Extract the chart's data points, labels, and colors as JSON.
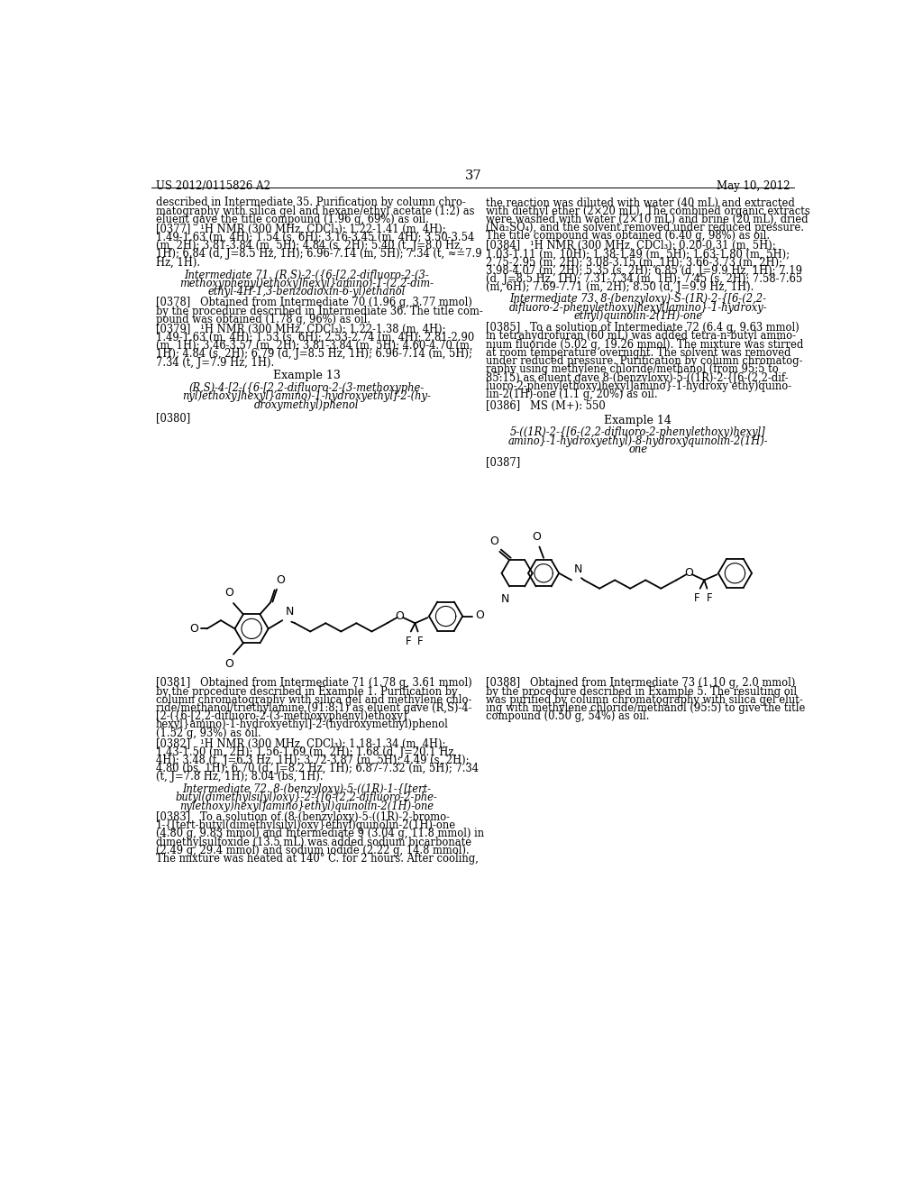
{
  "bg_color": "#ffffff",
  "header_left": "US 2012/0115826 A2",
  "header_right": "May 10, 2012",
  "header_center": "37",
  "fs": 8.3
}
